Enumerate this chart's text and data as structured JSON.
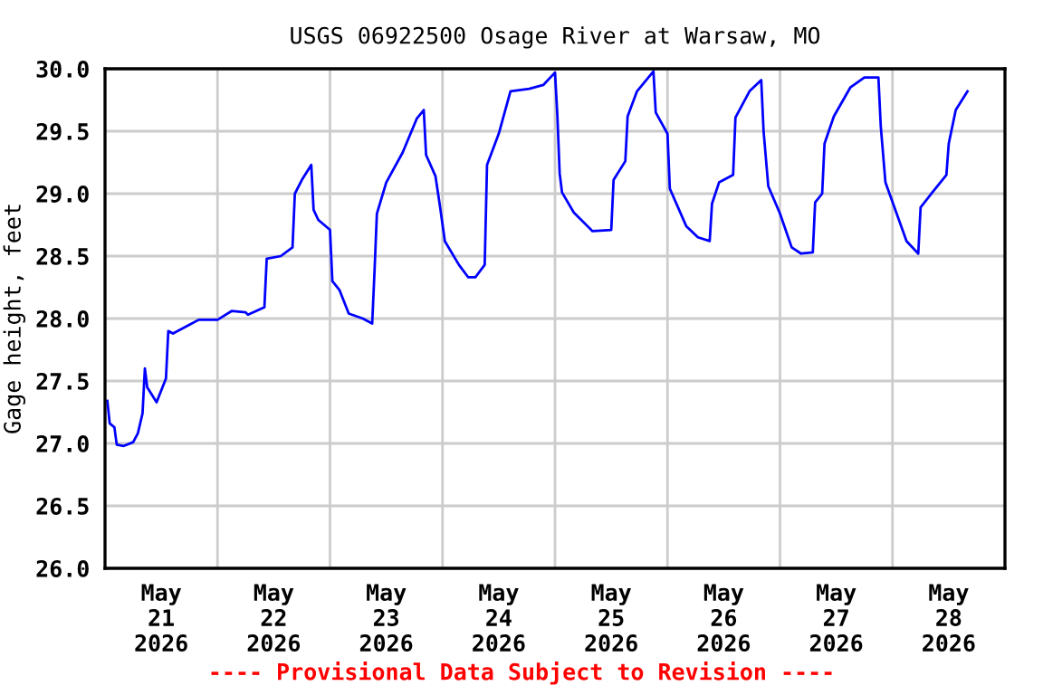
{
  "chart_data": {
    "type": "line",
    "title": "USGS 06922500 Osage River at Warsaw, MO",
    "ylabel": "Gage height, feet",
    "annotations": [
      "---- Provisional Data Subject to Revision ----"
    ],
    "x": [
      "2026-05-21T00:30",
      "2026-05-21T01:00",
      "2026-05-21T02:00",
      "2026-05-21T02:30",
      "2026-05-21T04:00",
      "2026-05-21T06:00",
      "2026-05-21T07:00",
      "2026-05-21T08:00",
      "2026-05-21T08:30",
      "2026-05-21T09:00",
      "2026-05-21T11:00",
      "2026-05-21T13:00",
      "2026-05-21T13:30",
      "2026-05-21T14:30",
      "2026-05-21T17:30",
      "2026-05-21T20:00",
      "2026-05-22T00:00",
      "2026-05-22T03:00",
      "2026-05-22T06:00",
      "2026-05-22T06:30",
      "2026-05-22T10:00",
      "2026-05-22T10:30",
      "2026-05-22T13:30",
      "2026-05-22T16:00",
      "2026-05-22T16:30",
      "2026-05-22T18:00",
      "2026-05-22T20:00",
      "2026-05-22T20:30",
      "2026-05-22T21:30",
      "2026-05-23T00:00",
      "2026-05-23T00:30",
      "2026-05-23T02:00",
      "2026-05-23T04:00",
      "2026-05-23T07:00",
      "2026-05-23T09:00",
      "2026-05-23T09:30",
      "2026-05-23T10:00",
      "2026-05-23T12:00",
      "2026-05-23T15:30",
      "2026-05-23T18:30",
      "2026-05-23T20:00",
      "2026-05-23T20:30",
      "2026-05-23T22:30",
      "2026-05-23T23:30",
      "2026-05-24T00:30",
      "2026-05-24T03:30",
      "2026-05-24T05:30",
      "2026-05-24T07:00",
      "2026-05-24T09:00",
      "2026-05-24T09:30",
      "2026-05-24T12:00",
      "2026-05-24T14:30",
      "2026-05-24T18:30",
      "2026-05-24T21:30",
      "2026-05-25T00:00",
      "2026-05-25T00:30",
      "2026-05-25T01:00",
      "2026-05-25T01:30",
      "2026-05-25T04:00",
      "2026-05-25T08:00",
      "2026-05-25T12:00",
      "2026-05-25T12:30",
      "2026-05-25T15:00",
      "2026-05-25T15:30",
      "2026-05-25T17:30",
      "2026-05-25T21:00",
      "2026-05-25T21:30",
      "2026-05-26T00:00",
      "2026-05-26T00:30",
      "2026-05-26T04:00",
      "2026-05-26T06:30",
      "2026-05-26T09:00",
      "2026-05-26T09:30",
      "2026-05-26T11:00",
      "2026-05-26T14:00",
      "2026-05-26T14:30",
      "2026-05-26T17:30",
      "2026-05-26T20:00",
      "2026-05-26T20:30",
      "2026-05-26T21:30",
      "2026-05-27T00:00",
      "2026-05-27T02:30",
      "2026-05-27T04:30",
      "2026-05-27T07:00",
      "2026-05-27T07:30",
      "2026-05-27T09:00",
      "2026-05-27T09:30",
      "2026-05-27T11:30",
      "2026-05-27T15:00",
      "2026-05-27T18:00",
      "2026-05-27T21:00",
      "2026-05-27T21:30",
      "2026-05-27T22:30",
      "2026-05-28T03:00",
      "2026-05-28T05:30",
      "2026-05-28T06:00",
      "2026-05-28T08:30",
      "2026-05-28T11:30",
      "2026-05-28T12:00",
      "2026-05-28T13:30",
      "2026-05-28T16:00"
    ],
    "series": [
      {
        "color": "#0000ff",
        "values": [
          27.34,
          27.16,
          27.13,
          26.99,
          26.98,
          27.01,
          27.08,
          27.24,
          27.6,
          27.45,
          27.33,
          27.52,
          27.9,
          27.88,
          27.94,
          27.99,
          27.99,
          28.06,
          28.05,
          28.03,
          28.09,
          28.48,
          28.5,
          28.57,
          29.0,
          29.11,
          29.23,
          28.87,
          28.79,
          28.71,
          28.3,
          28.23,
          28.04,
          28.0,
          27.96,
          28.38,
          28.84,
          29.09,
          29.33,
          29.6,
          29.67,
          29.31,
          29.14,
          28.89,
          28.62,
          28.43,
          28.33,
          28.33,
          28.43,
          29.23,
          29.48,
          29.82,
          29.84,
          29.87,
          29.97,
          29.63,
          29.16,
          29.01,
          28.85,
          28.7,
          28.71,
          29.11,
          29.26,
          29.62,
          29.82,
          29.98,
          29.65,
          29.48,
          29.04,
          28.74,
          28.65,
          28.62,
          28.92,
          29.09,
          29.15,
          29.61,
          29.82,
          29.91,
          29.5,
          29.06,
          28.84,
          28.57,
          28.52,
          28.53,
          28.93,
          29.0,
          29.4,
          29.62,
          29.85,
          29.93,
          29.93,
          29.54,
          29.09,
          28.62,
          28.52,
          28.89,
          29.01,
          29.15,
          29.4,
          29.67,
          29.82
        ]
      }
    ],
    "xlim": [
      "2026-05-21T00:00",
      "2026-05-29T00:00"
    ],
    "xticks": [
      {
        "value": "2026-05-21T12:00",
        "label": "May\n21\n2026"
      },
      {
        "value": "2026-05-22T00:00",
        "label": null
      },
      {
        "value": "2026-05-22T12:00",
        "label": "May\n22\n2026"
      },
      {
        "value": "2026-05-23T00:00",
        "label": null
      },
      {
        "value": "2026-05-23T12:00",
        "label": "May\n23\n2026"
      },
      {
        "value": "2026-05-24T00:00",
        "label": null
      },
      {
        "value": "2026-05-24T12:00",
        "label": "May\n24\n2026"
      },
      {
        "value": "2026-05-25T00:00",
        "label": null
      },
      {
        "value": "2026-05-25T12:00",
        "label": "May\n25\n2026"
      },
      {
        "value": "2026-05-26T00:00",
        "label": null
      },
      {
        "value": "2026-05-26T12:00",
        "label": "May\n26\n2026"
      },
      {
        "value": "2026-05-27T00:00",
        "label": null
      },
      {
        "value": "2026-05-27T12:00",
        "label": "May\n27\n2026"
      },
      {
        "value": "2026-05-28T00:00",
        "label": null
      },
      {
        "value": "2026-05-28T12:00",
        "label": "May\n28\n2026"
      }
    ],
    "ylim": [
      26,
      30
    ],
    "yticks": [
      {
        "value": 26,
        "label": "26.0"
      },
      {
        "value": 26.5,
        "label": "26.5"
      },
      {
        "value": 27,
        "label": "27.0"
      },
      {
        "value": 27.5,
        "label": "27.5"
      },
      {
        "value": 28,
        "label": "28.0"
      },
      {
        "value": 28.5,
        "label": "28.5"
      },
      {
        "value": 29,
        "label": "29.0"
      },
      {
        "value": 29.5,
        "label": "29.5"
      },
      {
        "value": 30,
        "label": "30.0"
      }
    ],
    "grid": true,
    "legend": false
  }
}
